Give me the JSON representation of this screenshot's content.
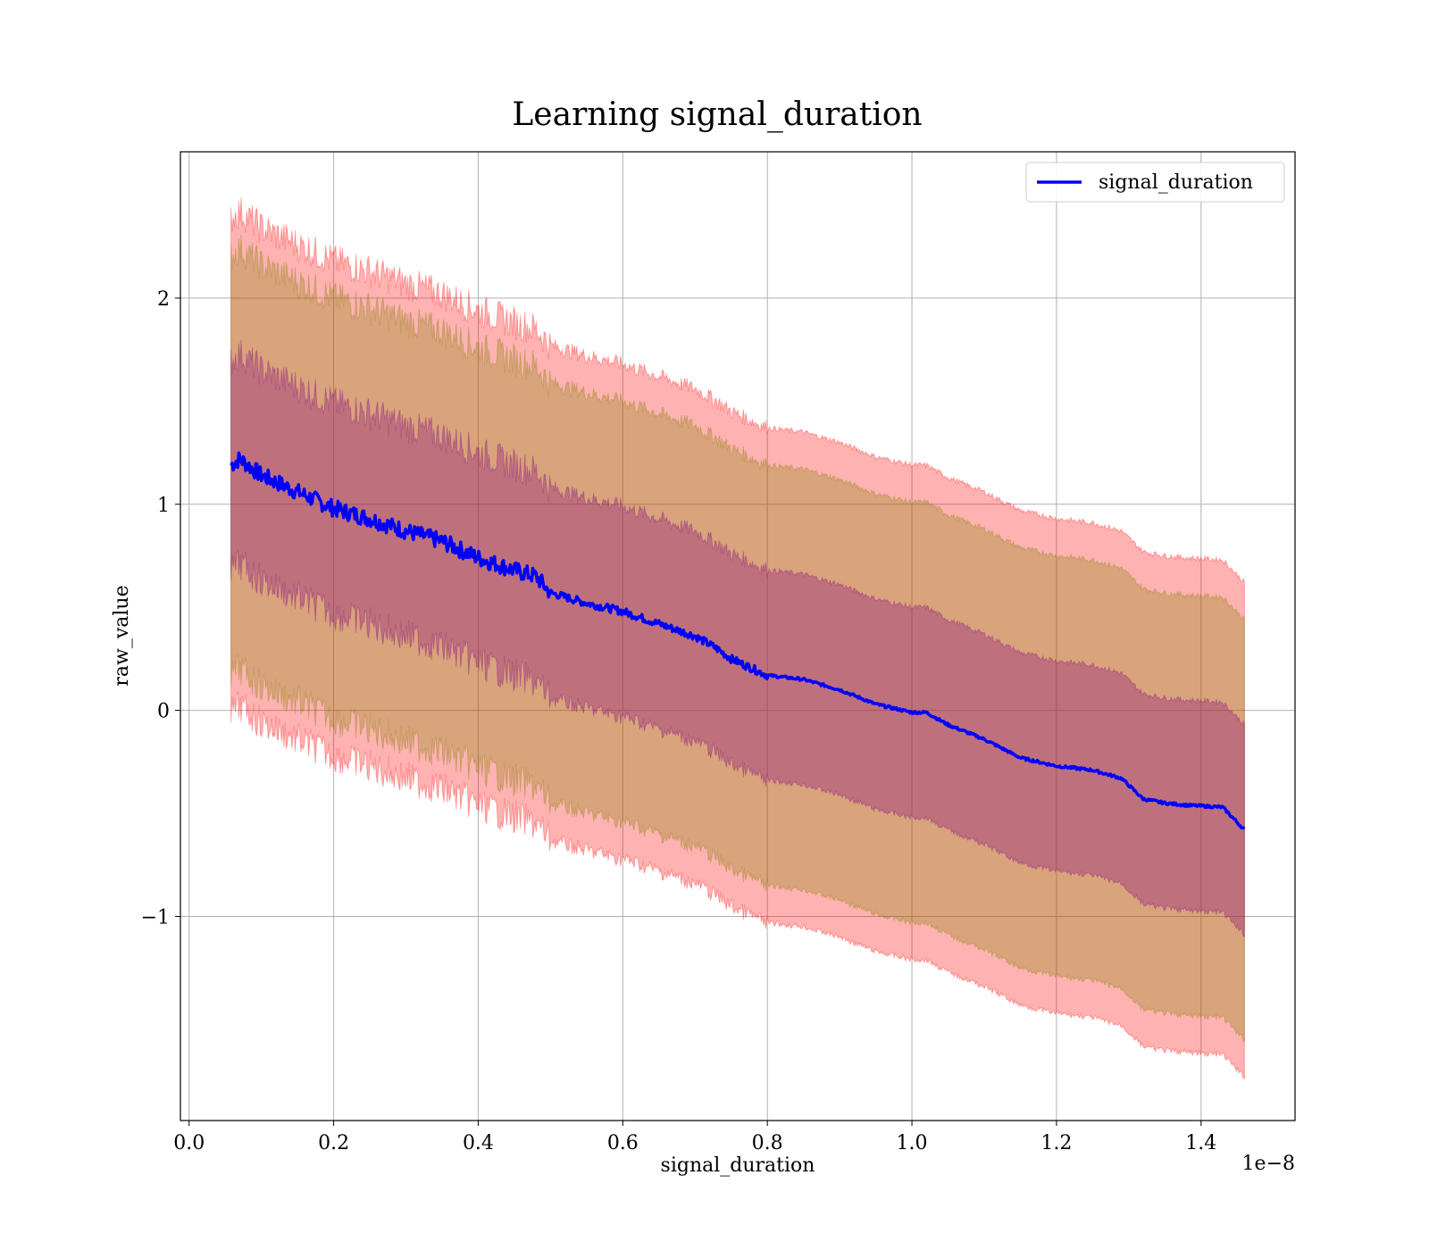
{
  "chart_data": {
    "type": "line",
    "title": "Learning signal_duration",
    "xlabel": "signal_duration",
    "ylabel": "raw_value",
    "x_offset_label": "1e−8",
    "xlim": [
      -0.012,
      1.53
    ],
    "ylim": [
      -1.99,
      2.71
    ],
    "x_ticks": [
      0.0,
      0.2,
      0.4,
      0.6,
      0.8,
      1.0,
      1.2,
      1.4
    ],
    "x_tick_labels": [
      "0.0",
      "0.2",
      "0.4",
      "0.6",
      "0.8",
      "1.0",
      "1.2",
      "1.4"
    ],
    "y_ticks": [
      -1,
      0,
      1,
      2
    ],
    "y_tick_labels": [
      "−1",
      "0",
      "1",
      "2"
    ],
    "grid": true,
    "legend": {
      "position": "top-right",
      "entries": [
        "signal_duration"
      ]
    },
    "colors": {
      "line": "#0000ff",
      "band_outer": "#ff0000",
      "band_middle": "#808000",
      "band_inner": "#800080"
    },
    "series": [
      {
        "name": "signal_duration",
        "x": [
          0.058,
          0.07,
          0.1,
          0.15,
          0.2,
          0.25,
          0.3,
          0.35,
          0.4,
          0.45,
          0.48,
          0.5,
          0.55,
          0.6,
          0.65,
          0.7,
          0.73,
          0.75,
          0.8,
          0.85,
          0.9,
          0.95,
          1.0,
          1.02,
          1.05,
          1.1,
          1.15,
          1.2,
          1.25,
          1.29,
          1.32,
          1.35,
          1.38,
          1.43,
          1.46
        ],
        "y": [
          1.19,
          1.22,
          1.14,
          1.06,
          0.98,
          0.93,
          0.87,
          0.82,
          0.74,
          0.68,
          0.65,
          0.57,
          0.52,
          0.48,
          0.42,
          0.36,
          0.3,
          0.25,
          0.17,
          0.15,
          0.1,
          0.03,
          -0.01,
          -0.01,
          -0.07,
          -0.14,
          -0.23,
          -0.27,
          -0.29,
          -0.33,
          -0.43,
          -0.45,
          -0.46,
          -0.47,
          -0.58
        ]
      }
    ],
    "bands": [
      {
        "color_key": "band_outer",
        "offset": 1.2,
        "jitter": true
      },
      {
        "color_key": "band_middle",
        "offset": 1.02,
        "jitter": true
      },
      {
        "color_key": "band_inner",
        "offset": 0.51,
        "jitter": true
      }
    ]
  }
}
